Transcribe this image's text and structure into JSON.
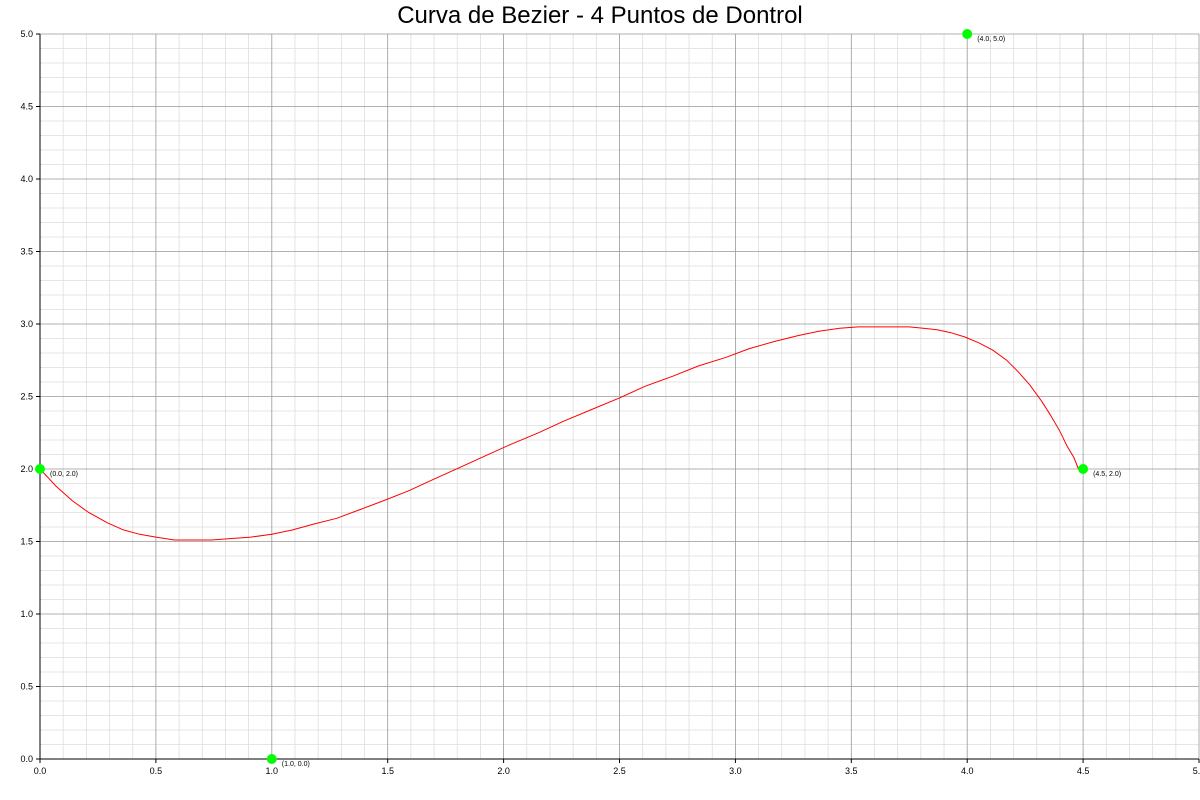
{
  "chart_data": {
    "type": "line",
    "title": "Curva de Bezier - 4 Puntos de Dontrol",
    "xlabel": "",
    "ylabel": "",
    "xlim": [
      0,
      5
    ],
    "ylim": [
      0,
      5
    ],
    "x_ticks": [
      "0.0",
      "0.5",
      "1.0",
      "1.5",
      "2.0",
      "2.5",
      "3.0",
      "3.5",
      "4.0",
      "4.5",
      "5.0"
    ],
    "y_ticks": [
      "0.0",
      "0.5",
      "1.0",
      "1.5",
      "2.0",
      "2.5",
      "3.0",
      "3.5",
      "4.0",
      "4.5",
      "5.0"
    ],
    "grid": true,
    "legend": "none",
    "control_points": [
      {
        "x": 0.0,
        "y": 2.0,
        "label": "(0.0, 2.0)"
      },
      {
        "x": 1.0,
        "y": 0.0,
        "label": "(1.0, 0.0)"
      },
      {
        "x": 4.0,
        "y": 5.0,
        "label": "(4.0, 5.0)"
      },
      {
        "x": 4.5,
        "y": 2.0,
        "label": "(4.5, 2.0)"
      }
    ],
    "curve": {
      "x": [
        0.0,
        0.07,
        0.14,
        0.21,
        0.29,
        0.36,
        0.43,
        0.5,
        0.58,
        0.66,
        0.74,
        0.82,
        0.91,
        1.0,
        1.09,
        1.18,
        1.28,
        1.38,
        1.48,
        1.59,
        1.7,
        1.81,
        1.92,
        2.03,
        2.15,
        2.26,
        2.38,
        2.5,
        2.61,
        2.73,
        2.84,
        2.96,
        3.06,
        3.17,
        3.27,
        3.36,
        3.45,
        3.53,
        3.61,
        3.68,
        3.75,
        3.81,
        3.87,
        3.93,
        3.99,
        4.05,
        4.11,
        4.17,
        4.22,
        4.27,
        4.32,
        4.36,
        4.4,
        4.43,
        4.46,
        4.48
      ],
      "y": [
        2.0,
        1.88,
        1.78,
        1.7,
        1.63,
        1.58,
        1.55,
        1.53,
        1.51,
        1.51,
        1.51,
        1.52,
        1.53,
        1.55,
        1.58,
        1.62,
        1.66,
        1.72,
        1.78,
        1.85,
        1.93,
        2.01,
        2.09,
        2.17,
        2.25,
        2.33,
        2.41,
        2.49,
        2.57,
        2.64,
        2.71,
        2.77,
        2.83,
        2.88,
        2.92,
        2.95,
        2.97,
        2.98,
        2.98,
        2.98,
        2.98,
        2.97,
        2.96,
        2.94,
        2.91,
        2.87,
        2.82,
        2.75,
        2.67,
        2.58,
        2.47,
        2.37,
        2.26,
        2.16,
        2.08,
        2.0
      ]
    },
    "colors": {
      "curve": "#ff0000",
      "control_point": "#00ff00",
      "grid_major": "#999999",
      "grid_minor": "#dddddd",
      "axis": "#000000"
    }
  }
}
